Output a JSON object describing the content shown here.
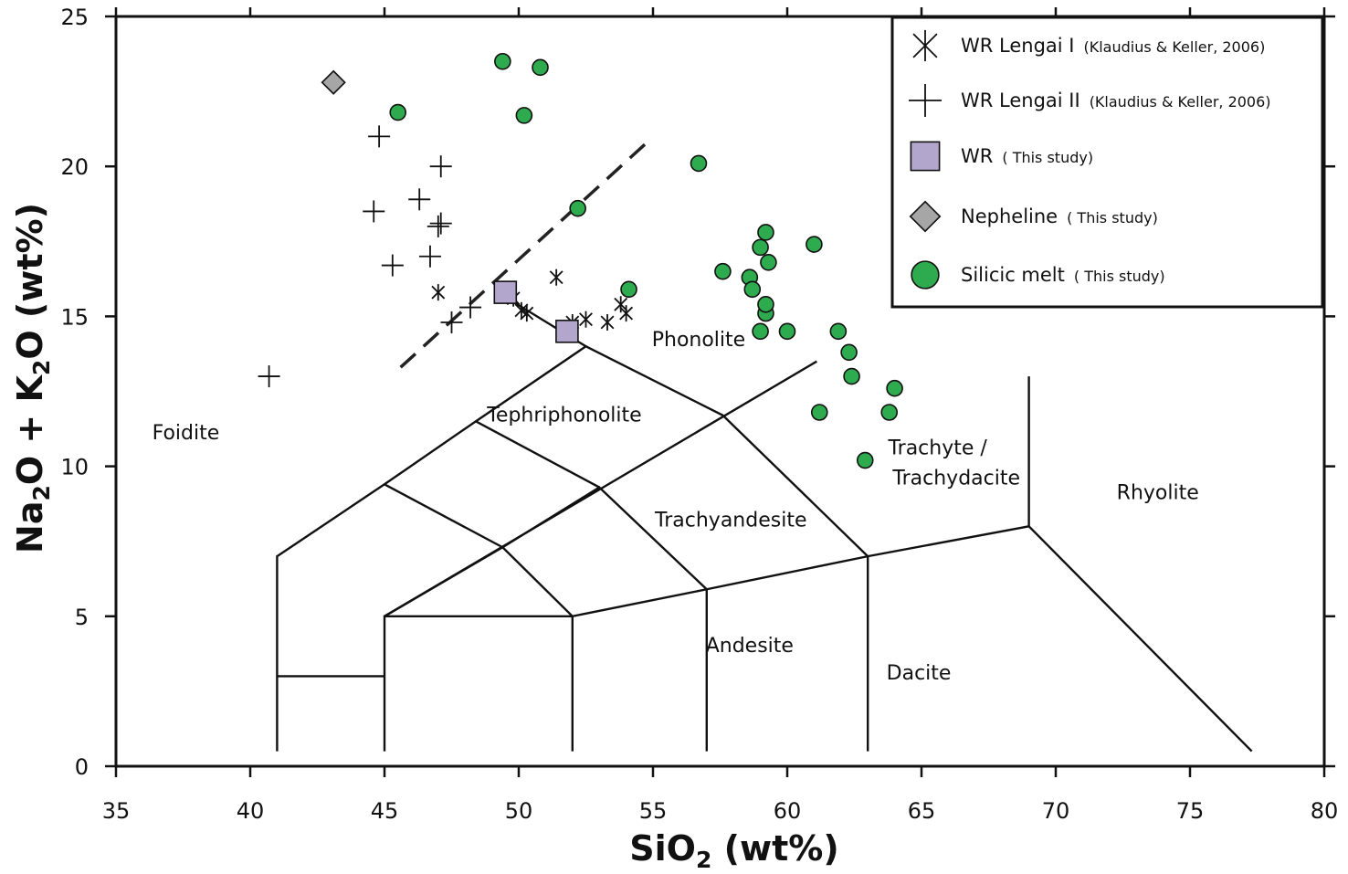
{
  "chart_data": {
    "type": "scatter",
    "xlabel": {
      "prefix": "SiO",
      "sub": "2",
      "suffix": " (wt%)"
    },
    "ylabel": {
      "p1": "Na",
      "s1": "2",
      "p2": "O + K",
      "s2": "2",
      "p3": "O  (wt%)"
    },
    "xlim": [
      35,
      80
    ],
    "ylim": [
      0,
      25
    ],
    "xticks": [
      35,
      40,
      45,
      50,
      55,
      60,
      65,
      70,
      75,
      80
    ],
    "yticks": [
      0,
      5,
      10,
      15,
      20,
      25
    ],
    "grid": false,
    "legend_position": "top-right",
    "colors": {
      "silicic_melt": "#2eaa4f",
      "wr_this_study": "#b3a6cc",
      "nepheline": "#a6a6a6"
    },
    "fields": [
      {
        "label": "Foidite",
        "x": 37.6,
        "y": 10.9
      },
      {
        "label": "Phonolite",
        "x": 56.7,
        "y": 14.0
      },
      {
        "label": "Tephriphonolite",
        "x": 51.7,
        "y": 11.5
      },
      {
        "label": "Trachyandesite",
        "x": 57.9,
        "y": 8.0
      },
      {
        "label": "Trachyte /",
        "x": 65.6,
        "y": 10.4
      },
      {
        "label": "Trachydacite",
        "x": 66.3,
        "y": 9.4
      },
      {
        "label": "Rhyolite",
        "x": 73.8,
        "y": 8.9
      },
      {
        "label": "Andesite",
        "x": 58.6,
        "y": 3.8
      },
      {
        "label": "Dacite",
        "x": 64.9,
        "y": 2.9
      }
    ],
    "boundaries": [
      [
        [
          41,
          0.5
        ],
        [
          41,
          7
        ],
        [
          45,
          9.4
        ],
        [
          48.4,
          11.5
        ],
        [
          52.5,
          14
        ],
        [
          49.4,
          15.7
        ]
      ],
      [
        [
          52.5,
          14
        ],
        [
          57.6,
          11.7
        ],
        [
          63,
          7
        ],
        [
          63,
          0.5
        ]
      ],
      [
        [
          41,
          3
        ],
        [
          45,
          3
        ]
      ],
      [
        [
          45,
          0.5
        ],
        [
          45,
          5
        ],
        [
          52,
          5
        ],
        [
          52,
          0.5
        ]
      ],
      [
        [
          45,
          5
        ],
        [
          49.4,
          7.3
        ],
        [
          52,
          5
        ]
      ],
      [
        [
          45,
          9.4
        ],
        [
          49.4,
          7.3
        ],
        [
          53.0,
          9.3
        ],
        [
          57,
          5.9
        ],
        [
          57,
          0.5
        ]
      ],
      [
        [
          48.4,
          11.5
        ],
        [
          53.0,
          9.3
        ]
      ],
      [
        [
          52,
          5
        ],
        [
          57,
          5.9
        ],
        [
          63,
          7
        ],
        [
          69,
          8
        ],
        [
          77.3,
          0.5
        ]
      ],
      [
        [
          45,
          5
        ],
        [
          61.1,
          13.5
        ]
      ],
      [
        [
          69,
          8
        ],
        [
          69,
          13
        ]
      ]
    ],
    "dashed_line": [
      [
        45.6,
        13.3
      ],
      [
        54.9,
        20.9
      ]
    ],
    "series": [
      {
        "name": "WR Lengai I",
        "source": "(Klaudius & Keller, 2006)",
        "marker": "asterisk",
        "points": [
          [
            47.0,
            15.8
          ],
          [
            49.8,
            15.6
          ],
          [
            50.1,
            15.2
          ],
          [
            50.3,
            15.1
          ],
          [
            51.4,
            16.3
          ],
          [
            52.0,
            14.8
          ],
          [
            52.5,
            14.9
          ],
          [
            53.3,
            14.8
          ],
          [
            53.8,
            15.4
          ],
          [
            54.0,
            15.1
          ]
        ]
      },
      {
        "name": "WR Lengai II",
        "source": "(Klaudius & Keller, 2006)",
        "marker": "plus",
        "points": [
          [
            40.7,
            13.0
          ],
          [
            44.6,
            18.5
          ],
          [
            44.8,
            21.0
          ],
          [
            45.3,
            16.7
          ],
          [
            46.3,
            18.9
          ],
          [
            46.7,
            17.0
          ],
          [
            47.0,
            18.0
          ],
          [
            47.1,
            18.1
          ],
          [
            47.1,
            20.0
          ],
          [
            47.5,
            14.8
          ],
          [
            48.2,
            15.3
          ]
        ]
      },
      {
        "name": "WR",
        "source": "( This study)",
        "marker": "square",
        "points": [
          [
            49.5,
            15.8
          ],
          [
            51.8,
            14.5
          ]
        ]
      },
      {
        "name": "Nepheline",
        "source": "( This study)",
        "marker": "diamond",
        "points": [
          [
            43.1,
            22.8
          ]
        ]
      },
      {
        "name": "Silicic melt",
        "source": "( This study)",
        "marker": "circle",
        "points": [
          [
            45.5,
            21.8
          ],
          [
            49.4,
            23.5
          ],
          [
            50.2,
            21.7
          ],
          [
            50.8,
            23.3
          ],
          [
            52.2,
            18.6
          ],
          [
            54.1,
            15.9
          ],
          [
            56.7,
            20.1
          ],
          [
            57.6,
            16.5
          ],
          [
            58.6,
            16.3
          ],
          [
            58.7,
            15.9
          ],
          [
            59.0,
            17.3
          ],
          [
            59.2,
            17.8
          ],
          [
            59.3,
            16.8
          ],
          [
            59.2,
            15.1
          ],
          [
            59.2,
            15.4
          ],
          [
            59.0,
            14.5
          ],
          [
            60.0,
            14.5
          ],
          [
            61.0,
            17.4
          ],
          [
            61.2,
            11.8
          ],
          [
            61.9,
            14.5
          ],
          [
            62.3,
            13.8
          ],
          [
            62.4,
            13.0
          ],
          [
            62.9,
            10.2
          ],
          [
            63.8,
            11.8
          ],
          [
            64.0,
            12.6
          ]
        ]
      }
    ]
  }
}
